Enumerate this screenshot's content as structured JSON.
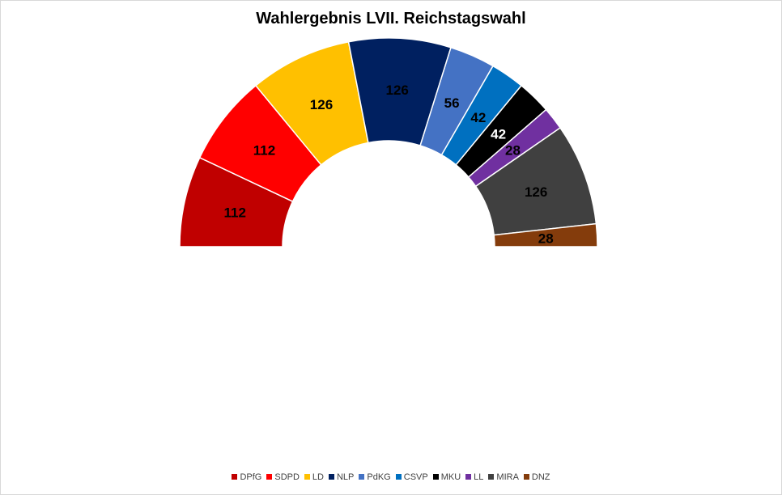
{
  "chart_data": {
    "type": "pie",
    "subtype": "half-donut (parliament)",
    "title": "Wahlergebnis LVII. Reichstagswahl",
    "categories": [
      "DPfG",
      "SDPD",
      "LD",
      "NLP",
      "PdKG",
      "CSVP",
      "MKU",
      "LL",
      "MIRA",
      "DNZ"
    ],
    "values": [
      112,
      112,
      126,
      126,
      56,
      42,
      42,
      28,
      126,
      28
    ],
    "colors": [
      "#C00000",
      "#FF0000",
      "#FFC000",
      "#002060",
      "#4472C4",
      "#0070C0",
      "#000000",
      "#7030A0",
      "#404040",
      "#843C0C"
    ],
    "label_colors": [
      "#000000",
      "#000000",
      "#000000",
      "#000000",
      "#000000",
      "#000000",
      "#ffffff",
      "#000000",
      "#000000",
      "#000000"
    ],
    "legend_position": "bottom"
  }
}
